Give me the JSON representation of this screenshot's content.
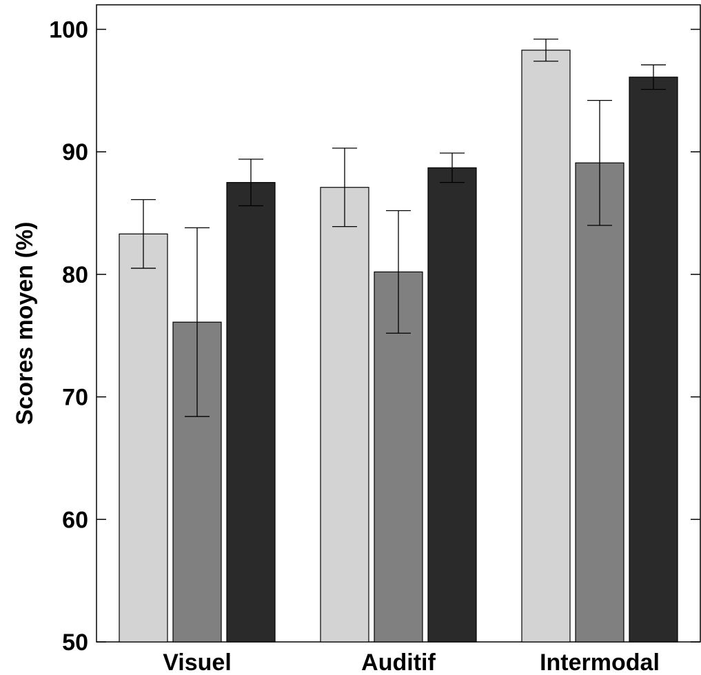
{
  "chart_data": {
    "type": "bar",
    "title": "",
    "xlabel": "",
    "ylabel": "Scores moyen (%)",
    "ylim": [
      50,
      102
    ],
    "yticks": [
      50,
      60,
      70,
      80,
      90,
      100
    ],
    "categories": [
      "Visuel",
      "Auditif",
      "Intermodal"
    ],
    "series": [
      {
        "color": "#d3d3d3",
        "values": [
          83.3,
          87.1,
          98.3
        ],
        "errors": [
          2.8,
          3.2,
          0.9
        ]
      },
      {
        "color": "#808080",
        "values": [
          76.1,
          80.2,
          89.1
        ],
        "errors": [
          7.7,
          5.0,
          5.1
        ]
      },
      {
        "color": "#2a2a2a",
        "values": [
          87.5,
          88.7,
          96.1
        ],
        "errors": [
          1.9,
          1.2,
          1.0
        ]
      }
    ],
    "grid": false,
    "legend": "none"
  }
}
